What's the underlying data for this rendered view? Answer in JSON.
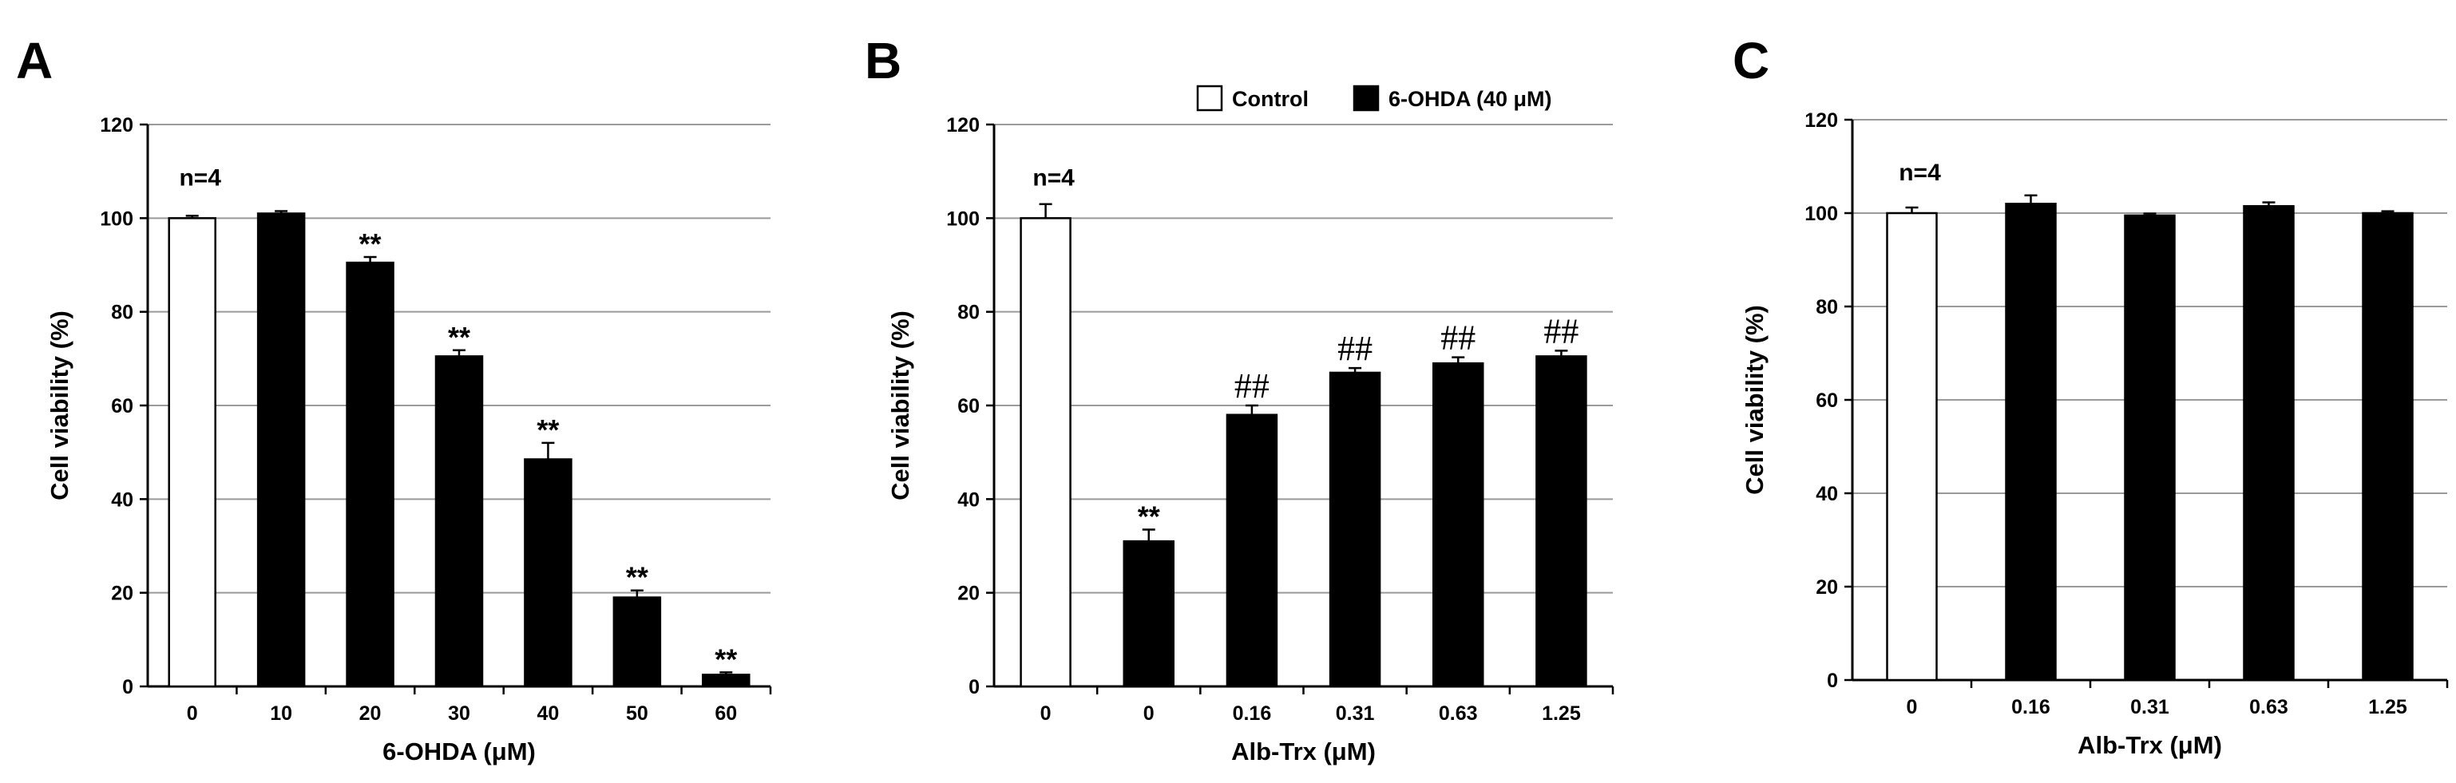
{
  "colors": {
    "control": "#ffffff",
    "treated": "#000000",
    "grid": "#9a9a9a",
    "axis": "#000000"
  },
  "legend": {
    "items": [
      {
        "label": "Control",
        "color": "#ffffff"
      },
      {
        "label": "6-OHDA (40 μM)",
        "color": "#000000"
      }
    ]
  },
  "chart_data": [
    {
      "type": "bar",
      "panel": "A",
      "xlabel": "6-OHDA (μM)",
      "ylabel": "Cell viability (%)",
      "ylim": [
        0,
        120
      ],
      "yticks": [
        0,
        20,
        40,
        60,
        80,
        100,
        120
      ],
      "grid": true,
      "categories": [
        "0",
        "10",
        "20",
        "30",
        "40",
        "50",
        "60"
      ],
      "values": [
        100,
        101,
        90.5,
        70.5,
        48.5,
        19,
        2.5
      ],
      "errors": [
        0.5,
        0.5,
        1.2,
        1.3,
        3.5,
        1.5,
        0.5
      ],
      "fills": [
        "control",
        "treated",
        "treated",
        "treated",
        "treated",
        "treated",
        "treated"
      ],
      "annotations": [
        "",
        "",
        "**",
        "**",
        "**",
        "**",
        "**"
      ],
      "note": "n=4"
    },
    {
      "type": "bar",
      "panel": "B",
      "xlabel": "Alb-Trx (μM)",
      "ylabel": "Cell viability (%)",
      "ylim": [
        0,
        120
      ],
      "yticks": [
        0,
        20,
        40,
        60,
        80,
        100,
        120
      ],
      "grid": true,
      "categories": [
        "0",
        "0",
        "0.16",
        "0.31",
        "0.63",
        "1.25"
      ],
      "values": [
        100,
        31,
        58,
        67,
        69,
        70.5
      ],
      "errors": [
        3,
        2.5,
        2,
        1,
        1.3,
        1.2
      ],
      "fills": [
        "control",
        "treated",
        "treated",
        "treated",
        "treated",
        "treated"
      ],
      "annotations": [
        "",
        "**",
        "##",
        "##",
        "##",
        "##"
      ],
      "note": "n=4",
      "legend": "top-right"
    },
    {
      "type": "bar",
      "panel": "C",
      "xlabel": "Alb-Trx (μM)",
      "ylabel": "Cell viability (%)",
      "ylim": [
        0,
        120
      ],
      "yticks": [
        0,
        20,
        40,
        60,
        80,
        100,
        120
      ],
      "grid": true,
      "categories": [
        "0",
        "0.16",
        "0.31",
        "0.63",
        "1.25"
      ],
      "values": [
        100,
        102,
        99.5,
        101.5,
        100
      ],
      "errors": [
        1.2,
        1.8,
        0.4,
        0.8,
        0.4
      ],
      "fills": [
        "control",
        "treated",
        "treated",
        "treated",
        "treated"
      ],
      "annotations": [
        "",
        "",
        "",
        "",
        ""
      ],
      "note": "n=4"
    }
  ]
}
